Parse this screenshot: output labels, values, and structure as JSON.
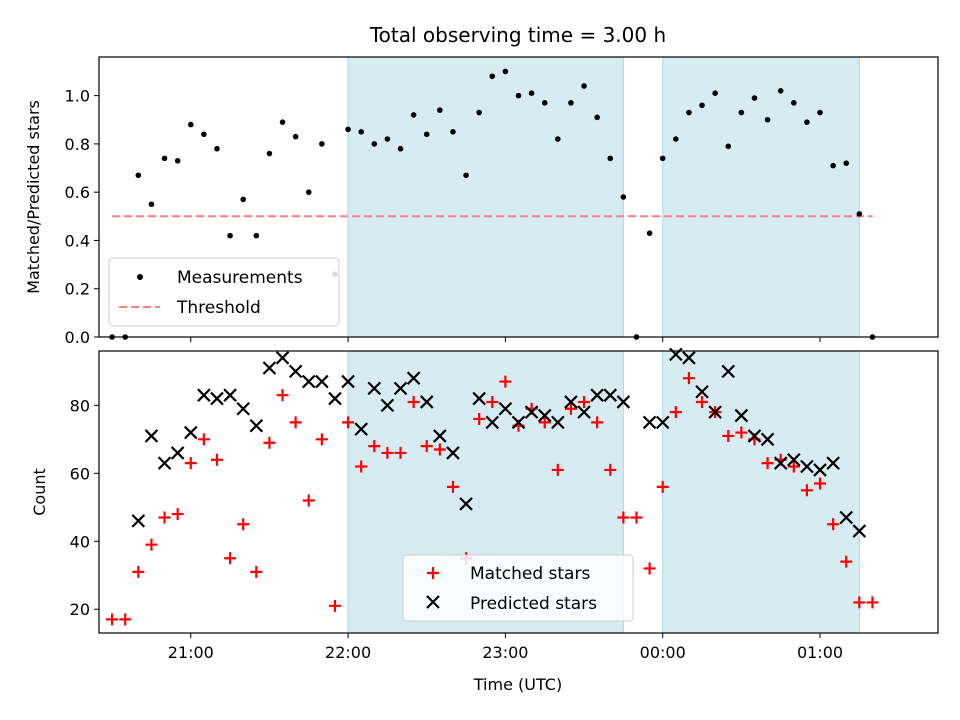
{
  "colors": {
    "shade": "#add8e6",
    "measure": "#000000",
    "threshold": "#ff7f7f",
    "matched": "#ff0000",
    "predicted": "#000000"
  },
  "chart_data": {
    "title": "Total observing time = 3.00 h",
    "xlabel": "Time (UTC)",
    "x_ticks": [
      "21:00",
      "22:00",
      "23:00",
      "00:00",
      "01:00"
    ],
    "x_range": [
      "20:25",
      "01:45"
    ],
    "shaded_intervals": [
      [
        "22:00",
        "23:45"
      ],
      [
        "00:00",
        "01:15"
      ]
    ],
    "top": {
      "type": "scatter",
      "ylabel": "Matched/Predicted stars",
      "ylim": [
        0,
        1.16
      ],
      "y_ticks": [
        "0.0",
        "0.2",
        "0.4",
        "0.6",
        "0.8",
        "1.0"
      ],
      "threshold": 0.5,
      "threshold_range": [
        "20:30",
        "01:20"
      ],
      "legend": [
        "Measurements",
        "Threshold"
      ],
      "legend_position": "lower-left",
      "measurements": [
        {
          "t": "20:30",
          "v": 0.0
        },
        {
          "t": "20:35",
          "v": 0.0
        },
        {
          "t": "20:40",
          "v": 0.67
        },
        {
          "t": "20:45",
          "v": 0.55
        },
        {
          "t": "20:50",
          "v": 0.74
        },
        {
          "t": "20:55",
          "v": 0.73
        },
        {
          "t": "21:00",
          "v": 0.88
        },
        {
          "t": "21:05",
          "v": 0.84
        },
        {
          "t": "21:10",
          "v": 0.78
        },
        {
          "t": "21:15",
          "v": 0.42
        },
        {
          "t": "21:20",
          "v": 0.57
        },
        {
          "t": "21:25",
          "v": 0.42
        },
        {
          "t": "21:30",
          "v": 0.76
        },
        {
          "t": "21:35",
          "v": 0.89
        },
        {
          "t": "21:40",
          "v": 0.83
        },
        {
          "t": "21:45",
          "v": 0.6
        },
        {
          "t": "21:50",
          "v": 0.8
        },
        {
          "t": "21:55",
          "v": 0.26
        },
        {
          "t": "22:00",
          "v": 0.86
        },
        {
          "t": "22:05",
          "v": 0.85
        },
        {
          "t": "22:10",
          "v": 0.8
        },
        {
          "t": "22:15",
          "v": 0.82
        },
        {
          "t": "22:20",
          "v": 0.78
        },
        {
          "t": "22:25",
          "v": 0.92
        },
        {
          "t": "22:30",
          "v": 0.84
        },
        {
          "t": "22:35",
          "v": 0.94
        },
        {
          "t": "22:40",
          "v": 0.85
        },
        {
          "t": "22:45",
          "v": 0.67
        },
        {
          "t": "22:50",
          "v": 0.93
        },
        {
          "t": "22:55",
          "v": 1.08
        },
        {
          "t": "23:00",
          "v": 1.1
        },
        {
          "t": "23:05",
          "v": 1.0
        },
        {
          "t": "23:10",
          "v": 1.01
        },
        {
          "t": "23:15",
          "v": 0.97
        },
        {
          "t": "23:20",
          "v": 0.82
        },
        {
          "t": "23:25",
          "v": 0.97
        },
        {
          "t": "23:30",
          "v": 1.04
        },
        {
          "t": "23:35",
          "v": 0.91
        },
        {
          "t": "23:40",
          "v": 0.74
        },
        {
          "t": "23:45",
          "v": 0.58
        },
        {
          "t": "23:50",
          "v": 0.0
        },
        {
          "t": "23:55",
          "v": 0.43
        },
        {
          "t": "00:00",
          "v": 0.74
        },
        {
          "t": "00:05",
          "v": 0.82
        },
        {
          "t": "00:10",
          "v": 0.93
        },
        {
          "t": "00:15",
          "v": 0.96
        },
        {
          "t": "00:20",
          "v": 1.01
        },
        {
          "t": "00:25",
          "v": 0.79
        },
        {
          "t": "00:30",
          "v": 0.93
        },
        {
          "t": "00:35",
          "v": 0.99
        },
        {
          "t": "00:40",
          "v": 0.9
        },
        {
          "t": "00:45",
          "v": 1.02
        },
        {
          "t": "00:50",
          "v": 0.97
        },
        {
          "t": "00:55",
          "v": 0.89
        },
        {
          "t": "01:00",
          "v": 0.93
        },
        {
          "t": "01:05",
          "v": 0.71
        },
        {
          "t": "01:10",
          "v": 0.72
        },
        {
          "t": "01:15",
          "v": 0.51
        },
        {
          "t": "01:20",
          "v": 0.0
        }
      ]
    },
    "bottom": {
      "type": "scatter",
      "ylabel": "Count",
      "ylim": [
        13,
        96
      ],
      "y_ticks": [
        "20",
        "40",
        "60",
        "80"
      ],
      "legend": [
        "Matched stars",
        "Predicted stars"
      ],
      "legend_position": "lower-center",
      "matched": [
        {
          "t": "20:30",
          "v": 17
        },
        {
          "t": "20:35",
          "v": 17
        },
        {
          "t": "20:40",
          "v": 31
        },
        {
          "t": "20:45",
          "v": 39
        },
        {
          "t": "20:50",
          "v": 47
        },
        {
          "t": "20:55",
          "v": 48
        },
        {
          "t": "21:00",
          "v": 63
        },
        {
          "t": "21:05",
          "v": 70
        },
        {
          "t": "21:10",
          "v": 64
        },
        {
          "t": "21:15",
          "v": 35
        },
        {
          "t": "21:20",
          "v": 45
        },
        {
          "t": "21:25",
          "v": 31
        },
        {
          "t": "21:30",
          "v": 69
        },
        {
          "t": "21:35",
          "v": 83
        },
        {
          "t": "21:40",
          "v": 75
        },
        {
          "t": "21:45",
          "v": 52
        },
        {
          "t": "21:50",
          "v": 70
        },
        {
          "t": "21:55",
          "v": 21
        },
        {
          "t": "22:00",
          "v": 75
        },
        {
          "t": "22:05",
          "v": 62
        },
        {
          "t": "22:10",
          "v": 68
        },
        {
          "t": "22:15",
          "v": 66
        },
        {
          "t": "22:20",
          "v": 66
        },
        {
          "t": "22:25",
          "v": 81
        },
        {
          "t": "22:30",
          "v": 68
        },
        {
          "t": "22:35",
          "v": 67
        },
        {
          "t": "22:40",
          "v": 56
        },
        {
          "t": "22:45",
          "v": 35
        },
        {
          "t": "22:50",
          "v": 76
        },
        {
          "t": "22:55",
          "v": 81
        },
        {
          "t": "23:00",
          "v": 87
        },
        {
          "t": "23:05",
          "v": 74
        },
        {
          "t": "23:10",
          "v": 79
        },
        {
          "t": "23:15",
          "v": 75
        },
        {
          "t": "23:20",
          "v": 61
        },
        {
          "t": "23:25",
          "v": 79
        },
        {
          "t": "23:30",
          "v": 81
        },
        {
          "t": "23:35",
          "v": 75
        },
        {
          "t": "23:40",
          "v": 61
        },
        {
          "t": "23:45",
          "v": 47
        },
        {
          "t": "23:50",
          "v": 47
        },
        {
          "t": "23:55",
          "v": 32
        },
        {
          "t": "00:00",
          "v": 56
        },
        {
          "t": "00:05",
          "v": 78
        },
        {
          "t": "00:10",
          "v": 88
        },
        {
          "t": "00:15",
          "v": 81
        },
        {
          "t": "00:20",
          "v": 78
        },
        {
          "t": "00:25",
          "v": 71
        },
        {
          "t": "00:30",
          "v": 72
        },
        {
          "t": "00:35",
          "v": 70
        },
        {
          "t": "00:40",
          "v": 63
        },
        {
          "t": "00:45",
          "v": 64
        },
        {
          "t": "00:50",
          "v": 62
        },
        {
          "t": "00:55",
          "v": 55
        },
        {
          "t": "01:00",
          "v": 57
        },
        {
          "t": "01:05",
          "v": 45
        },
        {
          "t": "01:10",
          "v": 34
        },
        {
          "t": "01:15",
          "v": 22
        },
        {
          "t": "01:20",
          "v": 22
        }
      ],
      "predicted": [
        {
          "t": "20:40",
          "v": 46
        },
        {
          "t": "20:45",
          "v": 71
        },
        {
          "t": "20:50",
          "v": 63
        },
        {
          "t": "20:55",
          "v": 66
        },
        {
          "t": "21:00",
          "v": 72
        },
        {
          "t": "21:05",
          "v": 83
        },
        {
          "t": "21:10",
          "v": 82
        },
        {
          "t": "21:15",
          "v": 83
        },
        {
          "t": "21:20",
          "v": 79
        },
        {
          "t": "21:25",
          "v": 74
        },
        {
          "t": "21:30",
          "v": 91
        },
        {
          "t": "21:35",
          "v": 94
        },
        {
          "t": "21:40",
          "v": 90
        },
        {
          "t": "21:45",
          "v": 87
        },
        {
          "t": "21:50",
          "v": 87
        },
        {
          "t": "21:55",
          "v": 82
        },
        {
          "t": "22:00",
          "v": 87
        },
        {
          "t": "22:05",
          "v": 73
        },
        {
          "t": "22:10",
          "v": 85
        },
        {
          "t": "22:15",
          "v": 80
        },
        {
          "t": "22:20",
          "v": 85
        },
        {
          "t": "22:25",
          "v": 88
        },
        {
          "t": "22:30",
          "v": 81
        },
        {
          "t": "22:35",
          "v": 71
        },
        {
          "t": "22:40",
          "v": 66
        },
        {
          "t": "22:45",
          "v": 51
        },
        {
          "t": "22:50",
          "v": 82
        },
        {
          "t": "22:55",
          "v": 75
        },
        {
          "t": "23:00",
          "v": 79
        },
        {
          "t": "23:05",
          "v": 75
        },
        {
          "t": "23:10",
          "v": 78
        },
        {
          "t": "23:15",
          "v": 77
        },
        {
          "t": "23:20",
          "v": 75
        },
        {
          "t": "23:25",
          "v": 81
        },
        {
          "t": "23:30",
          "v": 78
        },
        {
          "t": "23:35",
          "v": 83
        },
        {
          "t": "23:40",
          "v": 83
        },
        {
          "t": "23:45",
          "v": 81
        },
        {
          "t": "23:55",
          "v": 75
        },
        {
          "t": "00:00",
          "v": 75
        },
        {
          "t": "00:05",
          "v": 95
        },
        {
          "t": "00:10",
          "v": 94
        },
        {
          "t": "00:15",
          "v": 84
        },
        {
          "t": "00:20",
          "v": 78
        },
        {
          "t": "00:25",
          "v": 90
        },
        {
          "t": "00:30",
          "v": 77
        },
        {
          "t": "00:35",
          "v": 71
        },
        {
          "t": "00:40",
          "v": 70
        },
        {
          "t": "00:45",
          "v": 63
        },
        {
          "t": "00:50",
          "v": 64
        },
        {
          "t": "00:55",
          "v": 62
        },
        {
          "t": "01:00",
          "v": 61
        },
        {
          "t": "01:05",
          "v": 63
        },
        {
          "t": "01:10",
          "v": 47
        },
        {
          "t": "01:15",
          "v": 43
        }
      ]
    }
  }
}
